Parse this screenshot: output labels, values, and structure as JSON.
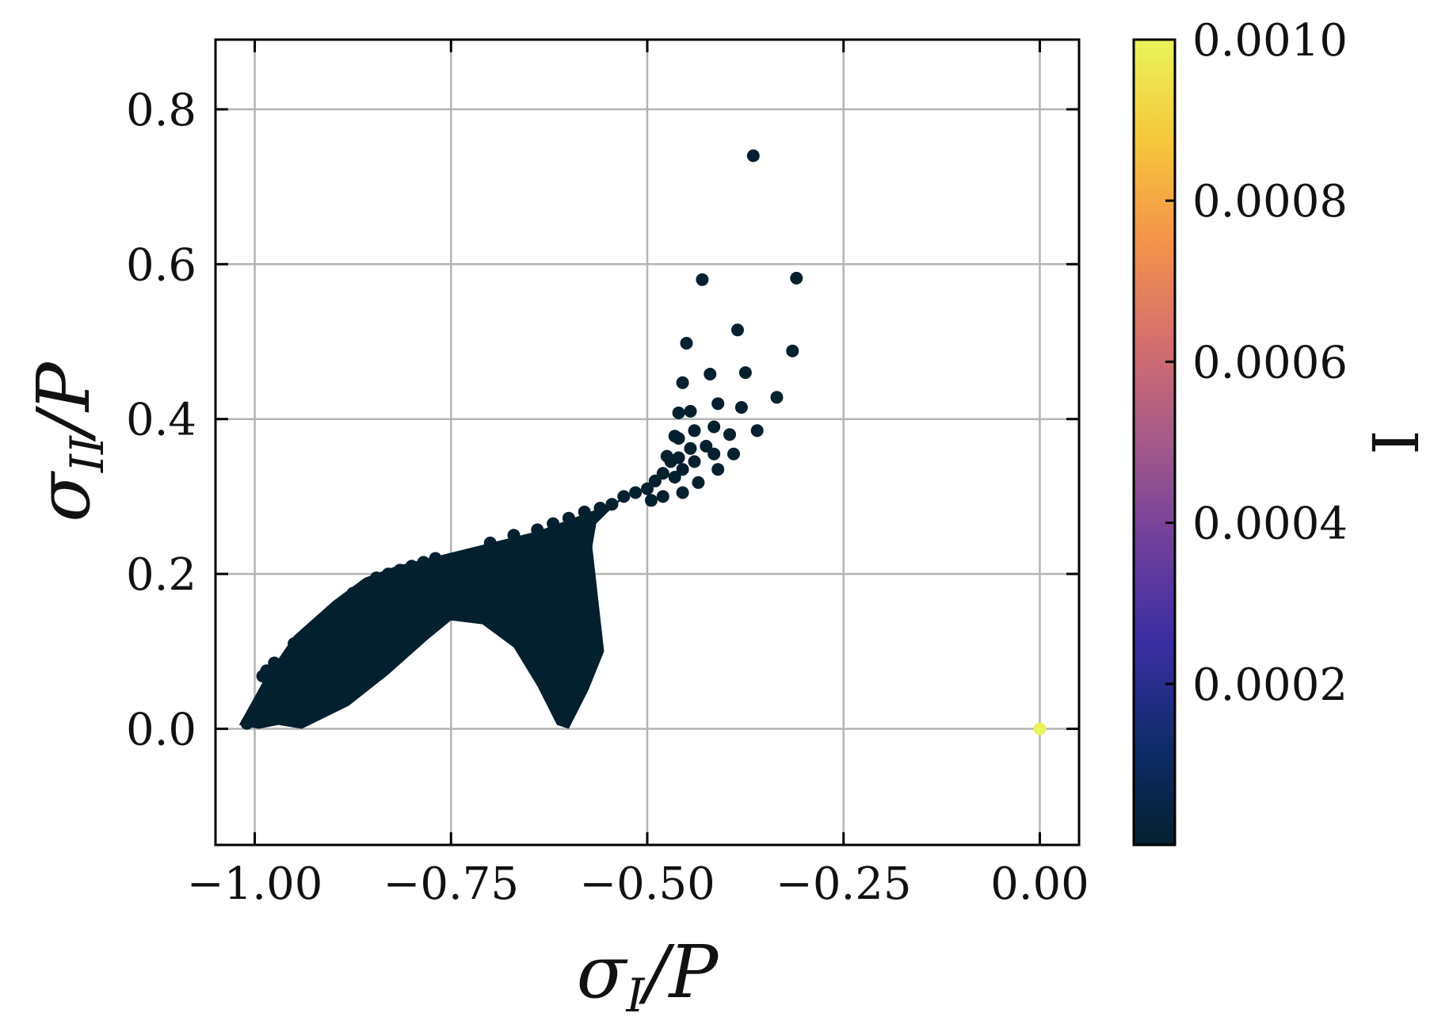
{
  "chart_data": {
    "type": "scatter",
    "title": "",
    "xlabel": {
      "symbol": "σ",
      "sub": "I",
      "suffix": "/P"
    },
    "ylabel": {
      "symbol": "σ",
      "sub": "II",
      "suffix": "/P"
    },
    "xlim": [
      -1.05,
      0.05
    ],
    "ylim": [
      -0.15,
      0.89
    ],
    "xticks": [
      -1.0,
      -0.75,
      -0.5,
      -0.25,
      0.0
    ],
    "xtick_labels": [
      "−1.00",
      "−0.75",
      "−0.50",
      "−0.25",
      "0.00"
    ],
    "yticks": [
      0.0,
      0.2,
      0.4,
      0.6,
      0.8
    ],
    "ytick_labels": [
      "0.0",
      "0.2",
      "0.4",
      "0.6",
      "0.8"
    ],
    "grid": true,
    "colorbar": {
      "label": "I",
      "range": [
        0.0,
        0.001
      ],
      "ticks": [
        0.0002,
        0.0004,
        0.0006,
        0.0008,
        0.001
      ],
      "tick_labels": [
        "0.0002",
        "0.0004",
        "0.0006",
        "0.0008",
        "0.0010"
      ],
      "colormap": [
        "#03202f",
        "#0f2c6b",
        "#3a2ea3",
        "#6f3f9c",
        "#a5598a",
        "#d56f6e",
        "#f4934a",
        "#f6c73c",
        "#eaf45a"
      ]
    },
    "dense_region": {
      "value": 0.0,
      "color": "#03202f",
      "outline": [
        [
          -1.02,
          0.005
        ],
        [
          -0.99,
          0.06
        ],
        [
          -0.95,
          0.12
        ],
        [
          -0.9,
          0.165
        ],
        [
          -0.86,
          0.195
        ],
        [
          -0.82,
          0.21
        ],
        [
          -0.76,
          0.225
        ],
        [
          -0.7,
          0.24
        ],
        [
          -0.64,
          0.255
        ],
        [
          -0.6,
          0.27
        ],
        [
          -0.56,
          0.285
        ],
        [
          -0.53,
          0.298
        ],
        [
          -0.545,
          0.285
        ],
        [
          -0.565,
          0.265
        ],
        [
          -0.57,
          0.235
        ],
        [
          -0.565,
          0.19
        ],
        [
          -0.555,
          0.1
        ],
        [
          -0.575,
          0.05
        ],
        [
          -0.6,
          0.0
        ],
        [
          -0.615,
          0.005
        ],
        [
          -0.64,
          0.055
        ],
        [
          -0.67,
          0.105
        ],
        [
          -0.71,
          0.135
        ],
        [
          -0.75,
          0.14
        ],
        [
          -0.78,
          0.115
        ],
        [
          -0.83,
          0.07
        ],
        [
          -0.88,
          0.03
        ],
        [
          -0.94,
          0.0
        ],
        [
          -0.97,
          0.005
        ],
        [
          -0.995,
          0.0
        ],
        [
          -1.02,
          0.005
        ]
      ]
    },
    "series": [
      {
        "value": 0.0,
        "color": "#03202f",
        "points": [
          [
            -1.01,
            0.007
          ],
          [
            -0.99,
            0.068
          ],
          [
            -0.985,
            0.075
          ],
          [
            -0.975,
            0.085
          ],
          [
            -0.97,
            0.07
          ],
          [
            -0.955,
            0.095
          ],
          [
            -0.95,
            0.11
          ],
          [
            -0.94,
            0.115
          ],
          [
            -0.93,
            0.12
          ],
          [
            -0.92,
            0.13
          ],
          [
            -0.905,
            0.145
          ],
          [
            -0.89,
            0.16
          ],
          [
            -0.875,
            0.175
          ],
          [
            -0.86,
            0.185
          ],
          [
            -0.845,
            0.195
          ],
          [
            -0.83,
            0.2
          ],
          [
            -0.815,
            0.205
          ],
          [
            -0.8,
            0.21
          ],
          [
            -0.785,
            0.215
          ],
          [
            -0.77,
            0.22
          ],
          [
            -0.96,
            0.08
          ],
          [
            -0.945,
            0.1
          ],
          [
            -0.915,
            0.11
          ],
          [
            -0.9,
            0.135
          ],
          [
            -0.885,
            0.15
          ],
          [
            -0.7,
            0.24
          ],
          [
            -0.67,
            0.25
          ],
          [
            -0.64,
            0.257
          ],
          [
            -0.62,
            0.265
          ],
          [
            -0.6,
            0.272
          ],
          [
            -0.58,
            0.28
          ],
          [
            -0.56,
            0.285
          ],
          [
            -0.545,
            0.29
          ],
          [
            -0.53,
            0.3
          ],
          [
            -0.515,
            0.305
          ],
          [
            -0.5,
            0.31
          ],
          [
            -0.495,
            0.295
          ],
          [
            -0.49,
            0.32
          ],
          [
            -0.48,
            0.33
          ],
          [
            -0.48,
            0.3
          ],
          [
            -0.475,
            0.352
          ],
          [
            -0.47,
            0.345
          ],
          [
            -0.465,
            0.325
          ],
          [
            -0.465,
            0.378
          ],
          [
            -0.46,
            0.408
          ],
          [
            -0.46,
            0.375
          ],
          [
            -0.46,
            0.35
          ],
          [
            -0.455,
            0.335
          ],
          [
            -0.455,
            0.305
          ],
          [
            -0.455,
            0.447
          ],
          [
            -0.45,
            0.498
          ],
          [
            -0.445,
            0.362
          ],
          [
            -0.445,
            0.41
          ],
          [
            -0.44,
            0.385
          ],
          [
            -0.44,
            0.345
          ],
          [
            -0.435,
            0.318
          ],
          [
            -0.43,
            0.58
          ],
          [
            -0.425,
            0.365
          ],
          [
            -0.42,
            0.458
          ],
          [
            -0.415,
            0.39
          ],
          [
            -0.415,
            0.355
          ],
          [
            -0.41,
            0.335
          ],
          [
            -0.41,
            0.42
          ],
          [
            -0.395,
            0.38
          ],
          [
            -0.39,
            0.355
          ],
          [
            -0.385,
            0.515
          ],
          [
            -0.38,
            0.415
          ],
          [
            -0.375,
            0.46
          ],
          [
            -0.365,
            0.74
          ],
          [
            -0.36,
            0.385
          ],
          [
            -0.335,
            0.428
          ],
          [
            -0.315,
            0.488
          ],
          [
            -0.31,
            0.582
          ]
        ]
      },
      {
        "value": 0.001,
        "color": "#eaf45a",
        "points": [
          [
            0.0,
            0.0
          ]
        ]
      }
    ]
  }
}
